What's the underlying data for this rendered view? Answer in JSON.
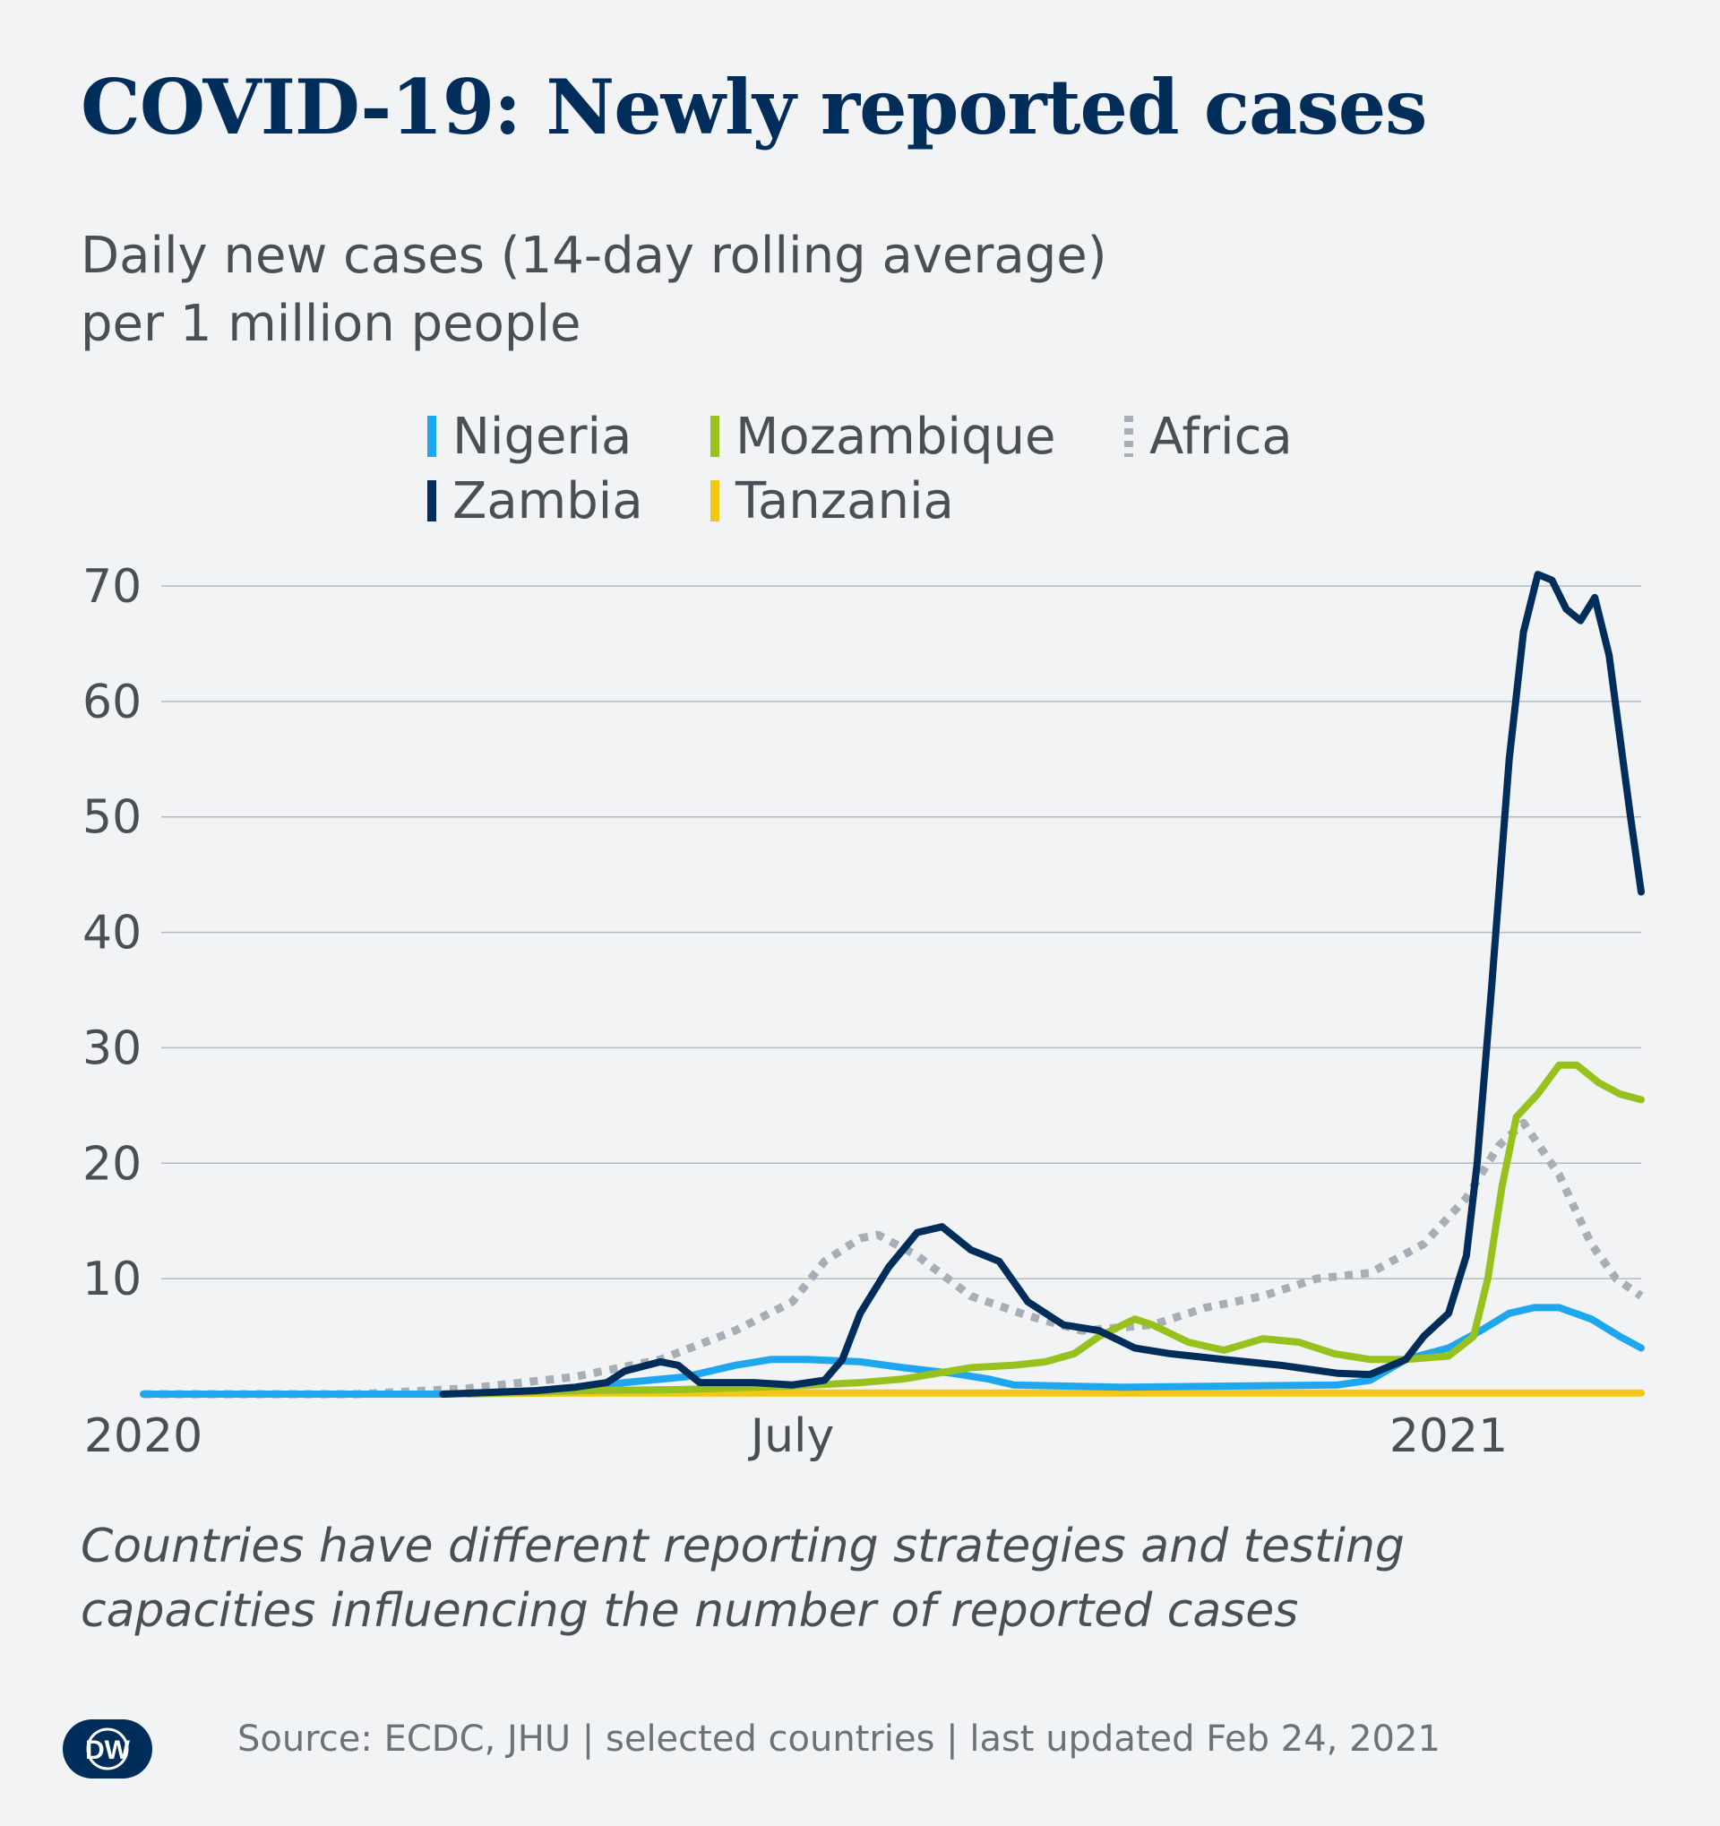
{
  "title": "COVID-19: Newly reported cases",
  "subtitle_line1": "Daily new cases (14-day rolling average)",
  "subtitle_line2": "per 1 million people",
  "note_line1": "Countries have different reporting strategies and testing",
  "note_line2": "capacities influencing the number of reported cases",
  "source": "Source: ECDC, JHU | selected countries | last updated Feb 24, 2021",
  "logo_text": "DW",
  "colors": {
    "Nigeria": "#1ea7ee",
    "Zambia": "#002d5a",
    "Mozambique": "#97c11c",
    "Tanzania": "#f2c811",
    "Africa": "#a7aeb5",
    "grid": "#b4bac0",
    "title": "#002d5a"
  },
  "chart_data": {
    "type": "line",
    "title": "COVID-19: Newly reported cases",
    "ylabel": "",
    "xlabel": "",
    "ylim": [
      0,
      72
    ],
    "xlim": [
      "2020-01-01",
      "2021-02-24"
    ],
    "yticks": [
      "10",
      "20",
      "30",
      "40",
      "50",
      "60",
      "70"
    ],
    "xticks": [
      {
        "date": "2020-01-01",
        "label": "2020"
      },
      {
        "date": "2020-07-01",
        "label": "July"
      },
      {
        "date": "2021-01-01",
        "label": "2021"
      }
    ],
    "grid": true,
    "legend_position": "top",
    "series": [
      {
        "name": "Nigeria",
        "color": "#1ea7ee",
        "style": "solid",
        "points": [
          [
            "2020-01-01",
            0
          ],
          [
            "2020-03-25",
            0
          ],
          [
            "2020-04-15",
            0.2
          ],
          [
            "2020-05-01",
            0.5
          ],
          [
            "2020-05-15",
            1.0
          ],
          [
            "2020-06-01",
            1.5
          ],
          [
            "2020-06-15",
            2.5
          ],
          [
            "2020-06-25",
            3.0
          ],
          [
            "2020-07-05",
            3.0
          ],
          [
            "2020-07-20",
            2.8
          ],
          [
            "2020-08-01",
            2.3
          ],
          [
            "2020-08-15",
            1.8
          ],
          [
            "2020-08-25",
            1.3
          ],
          [
            "2020-09-01",
            0.8
          ],
          [
            "2020-10-01",
            0.6
          ],
          [
            "2020-11-01",
            0.7
          ],
          [
            "2020-12-01",
            0.8
          ],
          [
            "2020-12-10",
            1.2
          ],
          [
            "2020-12-20",
            3.0
          ],
          [
            "2021-01-01",
            4.0
          ],
          [
            "2021-01-10",
            5.5
          ],
          [
            "2021-01-18",
            7.0
          ],
          [
            "2021-01-25",
            7.5
          ],
          [
            "2021-02-01",
            7.5
          ],
          [
            "2021-02-10",
            6.5
          ],
          [
            "2021-02-18",
            5.0
          ],
          [
            "2021-02-24",
            4.0
          ]
        ]
      },
      {
        "name": "Zambia",
        "color": "#002d5a",
        "style": "solid",
        "points": [
          [
            "2020-03-25",
            0
          ],
          [
            "2020-04-20",
            0.3
          ],
          [
            "2020-05-01",
            0.6
          ],
          [
            "2020-05-10",
            1.0
          ],
          [
            "2020-05-15",
            2.0
          ],
          [
            "2020-05-25",
            2.8
          ],
          [
            "2020-05-30",
            2.5
          ],
          [
            "2020-06-05",
            1.0
          ],
          [
            "2020-06-20",
            1.0
          ],
          [
            "2020-07-01",
            0.8
          ],
          [
            "2020-07-10",
            1.2
          ],
          [
            "2020-07-15",
            3.0
          ],
          [
            "2020-07-20",
            7.0
          ],
          [
            "2020-07-28",
            11.0
          ],
          [
            "2020-08-05",
            14.0
          ],
          [
            "2020-08-12",
            14.5
          ],
          [
            "2020-08-20",
            12.5
          ],
          [
            "2020-08-28",
            11.5
          ],
          [
            "2020-09-05",
            8.0
          ],
          [
            "2020-09-15",
            6.0
          ],
          [
            "2020-09-25",
            5.5
          ],
          [
            "2020-10-05",
            4.0
          ],
          [
            "2020-10-15",
            3.5
          ],
          [
            "2020-10-30",
            3.0
          ],
          [
            "2020-11-15",
            2.5
          ],
          [
            "2020-12-01",
            1.8
          ],
          [
            "2020-12-10",
            1.7
          ],
          [
            "2020-12-20",
            3.0
          ],
          [
            "2020-12-25",
            5.0
          ],
          [
            "2021-01-01",
            7.0
          ],
          [
            "2021-01-06",
            12.0
          ],
          [
            "2021-01-09",
            20.0
          ],
          [
            "2021-01-13",
            35.0
          ],
          [
            "2021-01-18",
            55.0
          ],
          [
            "2021-01-22",
            66.0
          ],
          [
            "2021-01-26",
            71.0
          ],
          [
            "2021-01-30",
            70.5
          ],
          [
            "2021-02-03",
            68.0
          ],
          [
            "2021-02-07",
            67.0
          ],
          [
            "2021-02-11",
            69.0
          ],
          [
            "2021-02-15",
            64.0
          ],
          [
            "2021-02-18",
            57.0
          ],
          [
            "2021-02-21",
            50.0
          ],
          [
            "2021-02-24",
            43.5
          ]
        ]
      },
      {
        "name": "Mozambique",
        "color": "#97c11c",
        "style": "solid",
        "points": [
          [
            "2020-04-01",
            0
          ],
          [
            "2020-05-01",
            0.3
          ],
          [
            "2020-06-01",
            0.4
          ],
          [
            "2020-07-01",
            0.7
          ],
          [
            "2020-07-20",
            1.0
          ],
          [
            "2020-08-01",
            1.3
          ],
          [
            "2020-08-20",
            2.3
          ],
          [
            "2020-09-01",
            2.5
          ],
          [
            "2020-09-10",
            2.8
          ],
          [
            "2020-09-18",
            3.5
          ],
          [
            "2020-09-25",
            5.0
          ],
          [
            "2020-10-05",
            6.5
          ],
          [
            "2020-10-10",
            6.0
          ],
          [
            "2020-10-20",
            4.5
          ],
          [
            "2020-10-30",
            3.8
          ],
          [
            "2020-11-10",
            4.8
          ],
          [
            "2020-11-20",
            4.5
          ],
          [
            "2020-11-30",
            3.5
          ],
          [
            "2020-12-10",
            3.0
          ],
          [
            "2020-12-20",
            3.0
          ],
          [
            "2021-01-01",
            3.3
          ],
          [
            "2021-01-08",
            5.0
          ],
          [
            "2021-01-12",
            10.0
          ],
          [
            "2021-01-16",
            18.0
          ],
          [
            "2021-01-20",
            24.0
          ],
          [
            "2021-01-26",
            26.0
          ],
          [
            "2021-02-01",
            28.5
          ],
          [
            "2021-02-06",
            28.5
          ],
          [
            "2021-02-12",
            27.0
          ],
          [
            "2021-02-18",
            26.0
          ],
          [
            "2021-02-24",
            25.5
          ]
        ]
      },
      {
        "name": "Tanzania",
        "color": "#f2c811",
        "style": "solid",
        "points": [
          [
            "2020-03-15",
            0
          ],
          [
            "2020-05-01",
            0.1
          ],
          [
            "2021-02-24",
            0.1
          ]
        ]
      },
      {
        "name": "Africa",
        "color": "#a7aeb5",
        "style": "dotted",
        "points": [
          [
            "2020-01-01",
            0
          ],
          [
            "2020-03-01",
            0
          ],
          [
            "2020-04-01",
            0.5
          ],
          [
            "2020-05-01",
            1.5
          ],
          [
            "2020-05-25",
            3.0
          ],
          [
            "2020-06-15",
            5.5
          ],
          [
            "2020-07-01",
            8.0
          ],
          [
            "2020-07-10",
            11.5
          ],
          [
            "2020-07-20",
            13.5
          ],
          [
            "2020-07-25",
            13.8
          ],
          [
            "2020-08-05",
            12.0
          ],
          [
            "2020-08-20",
            8.5
          ],
          [
            "2020-09-05",
            6.8
          ],
          [
            "2020-09-20",
            5.5
          ],
          [
            "2020-10-10",
            6.0
          ],
          [
            "2020-10-25",
            7.5
          ],
          [
            "2020-11-10",
            8.5
          ],
          [
            "2020-11-25",
            10.0
          ],
          [
            "2020-12-10",
            10.5
          ],
          [
            "2020-12-25",
            13.0
          ],
          [
            "2021-01-06",
            17.0
          ],
          [
            "2021-01-15",
            21.5
          ],
          [
            "2021-01-22",
            23.5
          ],
          [
            "2021-02-01",
            19.0
          ],
          [
            "2021-02-10",
            13.0
          ],
          [
            "2021-02-17",
            10.0
          ],
          [
            "2021-02-24",
            8.5
          ]
        ]
      }
    ]
  },
  "legend": [
    {
      "name": "Nigeria",
      "color": "#1ea7ee",
      "style": "solid"
    },
    {
      "name": "Mozambique",
      "color": "#97c11c",
      "style": "solid"
    },
    {
      "name": "Africa",
      "color": "#a7aeb5",
      "style": "dotted"
    },
    {
      "name": "Zambia",
      "color": "#002d5a",
      "style": "solid"
    },
    {
      "name": "Tanzania",
      "color": "#f2c811",
      "style": "solid"
    }
  ]
}
